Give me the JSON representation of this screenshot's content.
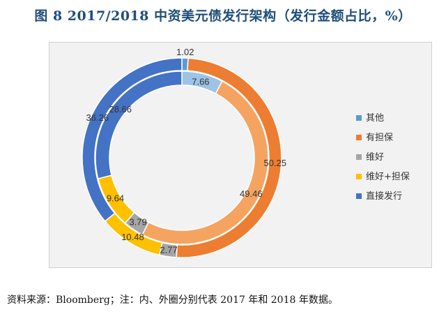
{
  "title": "图 8 2017/2018 中资美元债发行架构（发行金额占比，%）",
  "source_note": "资料来源：Bloomberg；注：内、外圈分别代表 2017 年和 2018 年数据。",
  "chart_data": {
    "type": "pie",
    "variant": "doughnut",
    "legend_position": "right",
    "categories": [
      "其他",
      "有担保",
      "维好",
      "维好+担保",
      "直接发行"
    ],
    "colors": [
      "#9dc3e6",
      "#f4a460",
      "#a6a6a6",
      "#ffc000",
      "#4472c4"
    ],
    "outer_colors": [
      "#5b9bd5",
      "#ed7d31",
      "#a5a5a5",
      "#ffc000",
      "#4472c4"
    ],
    "series": [
      {
        "ring": "inner",
        "values": [
          7.66,
          49.46,
          3.79,
          9.64,
          28.66
        ]
      },
      {
        "ring": "outer",
        "values": [
          1.02,
          50.25,
          2.77,
          10.48,
          36.26
        ]
      }
    ],
    "legend": [
      "其他",
      "有担保",
      "维好",
      "维好+担保",
      "直接发行"
    ]
  }
}
